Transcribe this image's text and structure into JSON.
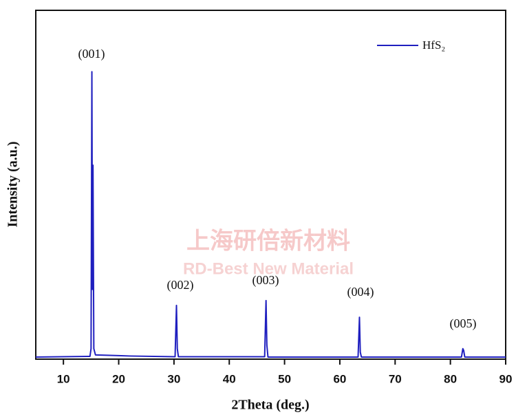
{
  "chart_data": {
    "type": "line",
    "xlabel": "2Theta (deg.)",
    "ylabel": "Intensity (a.u.)",
    "x": [
      5,
      14.8,
      15.0,
      15.15,
      15.25,
      15.35,
      15.5,
      15.8,
      20,
      22,
      30.2,
      30.45,
      30.6,
      30.8,
      42,
      46.4,
      46.65,
      46.8,
      47.0,
      63.3,
      63.55,
      63.7,
      63.9,
      82.0,
      82.25,
      82.4,
      82.6,
      90
    ],
    "series": [
      {
        "name": "HfS₂",
        "color": "#1f1fbf",
        "values": [
          0.6,
          0.8,
          3,
          82.4,
          20,
          55.6,
          3,
          1.2,
          1.0,
          0.9,
          0.7,
          15.4,
          3,
          0.7,
          0.7,
          0.7,
          16.8,
          4,
          0.6,
          0.6,
          12.0,
          2,
          0.6,
          0.6,
          3.0,
          2.5,
          0.6,
          0.6
        ]
      }
    ],
    "xlim": [
      5,
      90
    ],
    "xticks": [
      10,
      20,
      30,
      40,
      50,
      60,
      70,
      80,
      90
    ],
    "ylim": [
      0,
      100
    ],
    "annotations": [
      "(001)",
      "(002)",
      "(003)",
      "(004)",
      "(005)"
    ],
    "legend": "upper right",
    "watermark": [
      "上海研倍新材料",
      "RD-Best New Material"
    ]
  }
}
